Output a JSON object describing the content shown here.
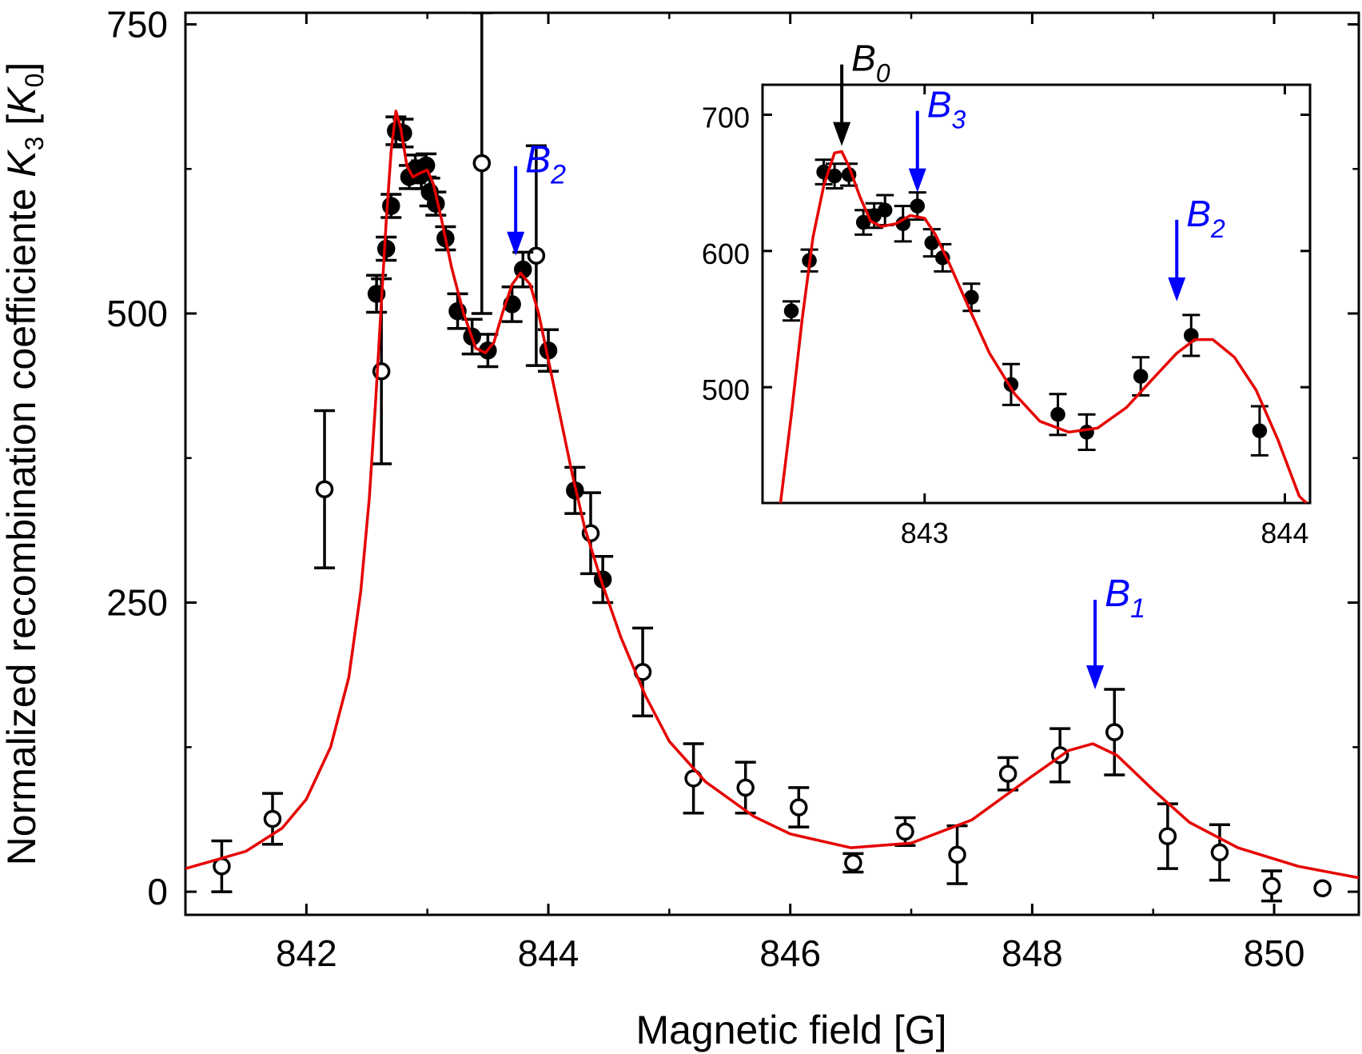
{
  "chart_data": [
    {
      "type": "scatter",
      "panel": "main",
      "xlabel": "Magnetic field [G]",
      "ylabel": "Normalized recombination coefficiente K3 [K0]",
      "ylabel_parts": {
        "main": "Normalized recombination coefficiente ",
        "symbol": "K",
        "sub": "3",
        "unit_open": " [",
        "unit_symbol": "K",
        "unit_sub": "0",
        "unit_close": "]"
      },
      "xlim": [
        841.0,
        850.7
      ],
      "ylim": [
        -20,
        760
      ],
      "x_ticks": [
        842,
        844,
        846,
        848,
        850
      ],
      "y_ticks": [
        0,
        250,
        500,
        750
      ],
      "x_tick_labels": [
        "842",
        "844",
        "846",
        "848",
        "850"
      ],
      "y_tick_labels": [
        "0",
        "250",
        "500",
        "750"
      ],
      "grid": false,
      "series": [
        {
          "kind": "open-circles-with-errorbars",
          "color": "#000000",
          "points": [
            {
              "x": 841.3,
              "y": 22,
              "err": 22
            },
            {
              "x": 841.72,
              "y": 63,
              "err": 22
            },
            {
              "x": 842.15,
              "y": 348,
              "err": 68
            },
            {
              "x": 842.62,
              "y": 450,
              "err": 80
            },
            {
              "x": 843.45,
              "y": 630,
              "err": 130
            },
            {
              "x": 843.9,
              "y": 550,
              "err": 95
            },
            {
              "x": 844.35,
              "y": 310,
              "err": 35
            },
            {
              "x": 844.78,
              "y": 190,
              "err": 38
            },
            {
              "x": 845.2,
              "y": 98,
              "err": 30
            },
            {
              "x": 845.63,
              "y": 90,
              "err": 22
            },
            {
              "x": 846.07,
              "y": 73,
              "err": 17
            },
            {
              "x": 846.52,
              "y": 25,
              "err": 8
            },
            {
              "x": 846.95,
              "y": 52,
              "err": 12
            },
            {
              "x": 847.38,
              "y": 32,
              "err": 25
            },
            {
              "x": 847.8,
              "y": 102,
              "err": 14
            },
            {
              "x": 848.23,
              "y": 118,
              "err": 23
            },
            {
              "x": 848.68,
              "y": 138,
              "err": 37
            },
            {
              "x": 849.12,
              "y": 48,
              "err": 28
            },
            {
              "x": 849.55,
              "y": 34,
              "err": 24
            },
            {
              "x": 849.98,
              "y": 5,
              "err": 13
            },
            {
              "x": 850.4,
              "y": 3,
              "err": 0
            }
          ]
        },
        {
          "kind": "filled-circles-with-errorbars",
          "color": "#000000",
          "points": [
            {
              "x": 842.58,
              "y": 517,
              "err": 16
            },
            {
              "x": 842.66,
              "y": 556,
              "err": 10
            },
            {
              "x": 842.7,
              "y": 593,
              "err": 10
            },
            {
              "x": 842.74,
              "y": 658,
              "err": 12
            },
            {
              "x": 842.8,
              "y": 656,
              "err": 12
            },
            {
              "x": 842.85,
              "y": 618,
              "err": 10
            },
            {
              "x": 842.9,
              "y": 625,
              "err": 12
            },
            {
              "x": 842.95,
              "y": 620,
              "err": 12
            },
            {
              "x": 842.99,
              "y": 628,
              "err": 10
            },
            {
              "x": 843.02,
              "y": 605,
              "err": 12
            },
            {
              "x": 843.07,
              "y": 595,
              "err": 10
            },
            {
              "x": 843.15,
              "y": 565,
              "err": 10
            },
            {
              "x": 843.25,
              "y": 502,
              "err": 15
            },
            {
              "x": 843.37,
              "y": 480,
              "err": 15
            },
            {
              "x": 843.5,
              "y": 468,
              "err": 14
            },
            {
              "x": 843.7,
              "y": 508,
              "err": 15
            },
            {
              "x": 843.79,
              "y": 538,
              "err": 15
            },
            {
              "x": 844.0,
              "y": 468,
              "err": 18
            },
            {
              "x": 844.22,
              "y": 347,
              "err": 20
            },
            {
              "x": 844.45,
              "y": 270,
              "err": 20
            }
          ]
        },
        {
          "kind": "fit-curve",
          "color": "#e60000",
          "points": [
            [
              841.0,
              20
            ],
            [
              841.5,
              35
            ],
            [
              841.8,
              55
            ],
            [
              842.0,
              80
            ],
            [
              842.2,
              125
            ],
            [
              842.35,
              185
            ],
            [
              842.45,
              260
            ],
            [
              842.52,
              340
            ],
            [
              842.57,
              420
            ],
            [
              842.62,
              510
            ],
            [
              842.66,
              580
            ],
            [
              842.7,
              640
            ],
            [
              842.74,
              675
            ],
            [
              842.78,
              660
            ],
            [
              842.83,
              628
            ],
            [
              842.88,
              618
            ],
            [
              842.95,
              622
            ],
            [
              843.0,
              624
            ],
            [
              843.05,
              612
            ],
            [
              843.12,
              580
            ],
            [
              843.2,
              540
            ],
            [
              843.3,
              500
            ],
            [
              843.4,
              470
            ],
            [
              843.48,
              466
            ],
            [
              843.55,
              475
            ],
            [
              843.62,
              500
            ],
            [
              843.7,
              525
            ],
            [
              843.77,
              535
            ],
            [
              843.85,
              525
            ],
            [
              843.92,
              500
            ],
            [
              844.0,
              460
            ],
            [
              844.1,
              410
            ],
            [
              844.2,
              360
            ],
            [
              844.3,
              315
            ],
            [
              844.45,
              265
            ],
            [
              844.6,
              220
            ],
            [
              844.8,
              170
            ],
            [
              845.0,
              130
            ],
            [
              845.3,
              95
            ],
            [
              845.7,
              65
            ],
            [
              846.0,
              50
            ],
            [
              846.5,
              38
            ],
            [
              847.0,
              42
            ],
            [
              847.5,
              62
            ],
            [
              848.0,
              100
            ],
            [
              848.3,
              122
            ],
            [
              848.5,
              128
            ],
            [
              848.7,
              118
            ],
            [
              849.0,
              88
            ],
            [
              849.3,
              60
            ],
            [
              849.7,
              38
            ],
            [
              850.2,
              22
            ],
            [
              850.7,
              12
            ]
          ]
        }
      ],
      "annotations": [
        {
          "label": "B",
          "sub": "2",
          "x": 843.73,
          "y_tip": 550,
          "color": "#0000ff"
        },
        {
          "label": "B",
          "sub": "1",
          "x": 848.52,
          "y_tip": 175,
          "color": "#0000ff"
        }
      ]
    },
    {
      "type": "scatter",
      "panel": "inset",
      "xlim": [
        842.55,
        844.07
      ],
      "ylim": [
        415,
        722
      ],
      "x_ticks": [
        843,
        844
      ],
      "y_ticks": [
        500,
        600,
        700
      ],
      "x_tick_labels": [
        "843",
        "844"
      ],
      "y_tick_labels": [
        "500",
        "600",
        "700"
      ],
      "grid": false,
      "series": [
        {
          "kind": "filled-circles-with-errorbars",
          "color": "#000000",
          "points": [
            {
              "x": 842.63,
              "y": 556,
              "err": 7
            },
            {
              "x": 842.68,
              "y": 593,
              "err": 8
            },
            {
              "x": 842.72,
              "y": 658,
              "err": 9
            },
            {
              "x": 842.75,
              "y": 655,
              "err": 9
            },
            {
              "x": 842.79,
              "y": 656,
              "err": 8
            },
            {
              "x": 842.83,
              "y": 621,
              "err": 9
            },
            {
              "x": 842.86,
              "y": 626,
              "err": 9
            },
            {
              "x": 842.89,
              "y": 630,
              "err": 11
            },
            {
              "x": 842.94,
              "y": 620,
              "err": 13
            },
            {
              "x": 842.98,
              "y": 633,
              "err": 10
            },
            {
              "x": 843.02,
              "y": 606,
              "err": 10
            },
            {
              "x": 843.05,
              "y": 595,
              "err": 10
            },
            {
              "x": 843.13,
              "y": 566,
              "err": 10
            },
            {
              "x": 843.24,
              "y": 502,
              "err": 15
            },
            {
              "x": 843.37,
              "y": 480,
              "err": 15
            },
            {
              "x": 843.45,
              "y": 467,
              "err": 13
            },
            {
              "x": 843.6,
              "y": 508,
              "err": 14
            },
            {
              "x": 843.74,
              "y": 538,
              "err": 15
            },
            {
              "x": 843.93,
              "y": 468,
              "err": 18
            }
          ]
        },
        {
          "kind": "fit-curve",
          "color": "#e60000",
          "points": [
            [
              842.6,
              415
            ],
            [
              842.63,
              480
            ],
            [
              842.66,
              550
            ],
            [
              842.69,
              610
            ],
            [
              842.72,
              648
            ],
            [
              842.75,
              672
            ],
            [
              842.77,
              673
            ],
            [
              842.79,
              662
            ],
            [
              842.82,
              640
            ],
            [
              842.85,
              622
            ],
            [
              842.88,
              618
            ],
            [
              842.92,
              620
            ],
            [
              842.96,
              626
            ],
            [
              843.0,
              624
            ],
            [
              843.03,
              612
            ],
            [
              843.07,
              590
            ],
            [
              843.12,
              560
            ],
            [
              843.18,
              525
            ],
            [
              843.25,
              495
            ],
            [
              843.32,
              475
            ],
            [
              843.4,
              467
            ],
            [
              843.48,
              470
            ],
            [
              843.56,
              485
            ],
            [
              843.64,
              508
            ],
            [
              843.7,
              525
            ],
            [
              843.75,
              535
            ],
            [
              843.8,
              535
            ],
            [
              843.86,
              522
            ],
            [
              843.92,
              498
            ],
            [
              843.98,
              462
            ],
            [
              844.04,
              420
            ],
            [
              844.06,
              415
            ]
          ]
        }
      ],
      "annotations": [
        {
          "label": "B",
          "sub": "0",
          "x": 842.77,
          "y_tip": 677,
          "color": "#000000"
        },
        {
          "label": "B",
          "sub": "3",
          "x": 842.98,
          "y_tip": 643,
          "color": "#0000ff"
        },
        {
          "label": "B",
          "sub": "2",
          "x": 843.7,
          "y_tip": 563,
          "color": "#0000ff"
        }
      ]
    }
  ]
}
